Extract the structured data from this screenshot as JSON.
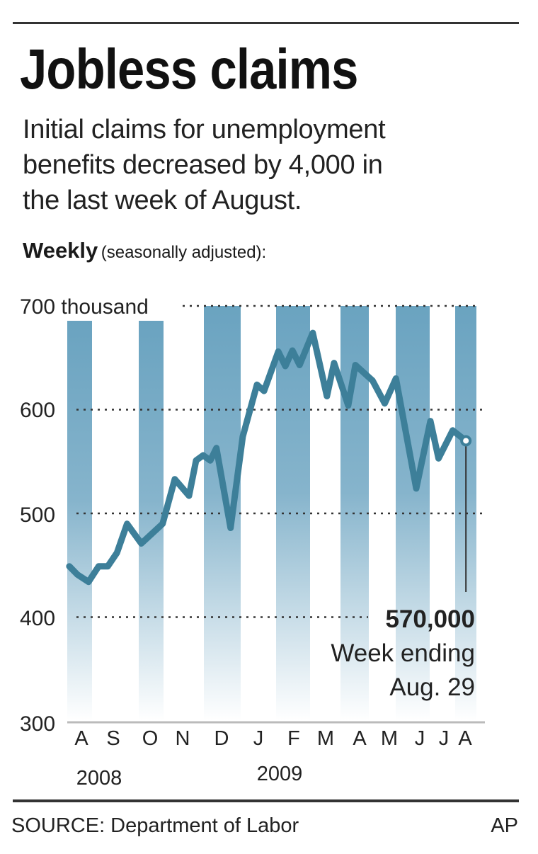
{
  "header": {
    "title": "Jobless claims",
    "subtitle_lines": [
      "Initial claims for unemployment",
      "benefits decreased by 4,000 in",
      "the last week of August."
    ],
    "chart_label": "Weekly",
    "chart_label_note": "(seasonally adjusted):"
  },
  "footer": {
    "source": "SOURCE: Department of Labor",
    "credit": "AP"
  },
  "colors": {
    "line": "#3d7f99",
    "band": "#6aa3c0",
    "grid": "#333333"
  },
  "chart_data": {
    "type": "line",
    "title": "Jobless claims",
    "ylabel": "",
    "ylim": [
      300,
      700
    ],
    "y_ticks": [
      "700 thousand",
      "600",
      "500",
      "400",
      "300"
    ],
    "y_tick_values": [
      700,
      600,
      500,
      400,
      300
    ],
    "grid": "horizontal dotted",
    "x_tick_labels": [
      "A",
      "S",
      "O",
      "N",
      "D",
      "J",
      "F",
      "M",
      "A",
      "M",
      "J",
      "J",
      "A"
    ],
    "x_year_labels": [
      "2008",
      "2009"
    ],
    "shaded_months": [
      "2008-08",
      "2008-10",
      "2008-12",
      "2009-02",
      "2009-04",
      "2009-06",
      "2009-08"
    ],
    "x": [
      "2008-08-03",
      "2008-08-11",
      "2008-08-22",
      "2008-09-01",
      "2008-09-10",
      "2008-09-19",
      "2008-09-29",
      "2008-10-13",
      "2008-11-03",
      "2008-11-15",
      "2008-11-29",
      "2008-12-06",
      "2008-12-13",
      "2008-12-20",
      "2008-12-26",
      "2009-01-09",
      "2009-01-21",
      "2009-02-04",
      "2009-02-11",
      "2009-02-25",
      "2009-03-04",
      "2009-03-11",
      "2009-03-18",
      "2009-03-31",
      "2009-04-14",
      "2009-04-21",
      "2009-05-05",
      "2009-05-12",
      "2009-05-29",
      "2009-06-10",
      "2009-06-21",
      "2009-07-11",
      "2009-07-25",
      "2009-08-02",
      "2009-08-16",
      "2009-08-29"
    ],
    "series": [
      {
        "values": [
          449,
          441,
          434,
          449,
          449,
          462,
          490,
          471,
          490,
          533,
          517,
          551,
          556,
          551,
          563,
          486,
          574,
          624,
          618,
          656,
          642,
          657,
          643,
          674,
          613,
          645,
          604,
          643,
          628,
          606,
          630,
          524,
          589,
          553,
          580,
          570
        ]
      }
    ],
    "annotation": {
      "value": "570,000",
      "line1": "Week ending",
      "line2": "Aug. 29"
    }
  }
}
